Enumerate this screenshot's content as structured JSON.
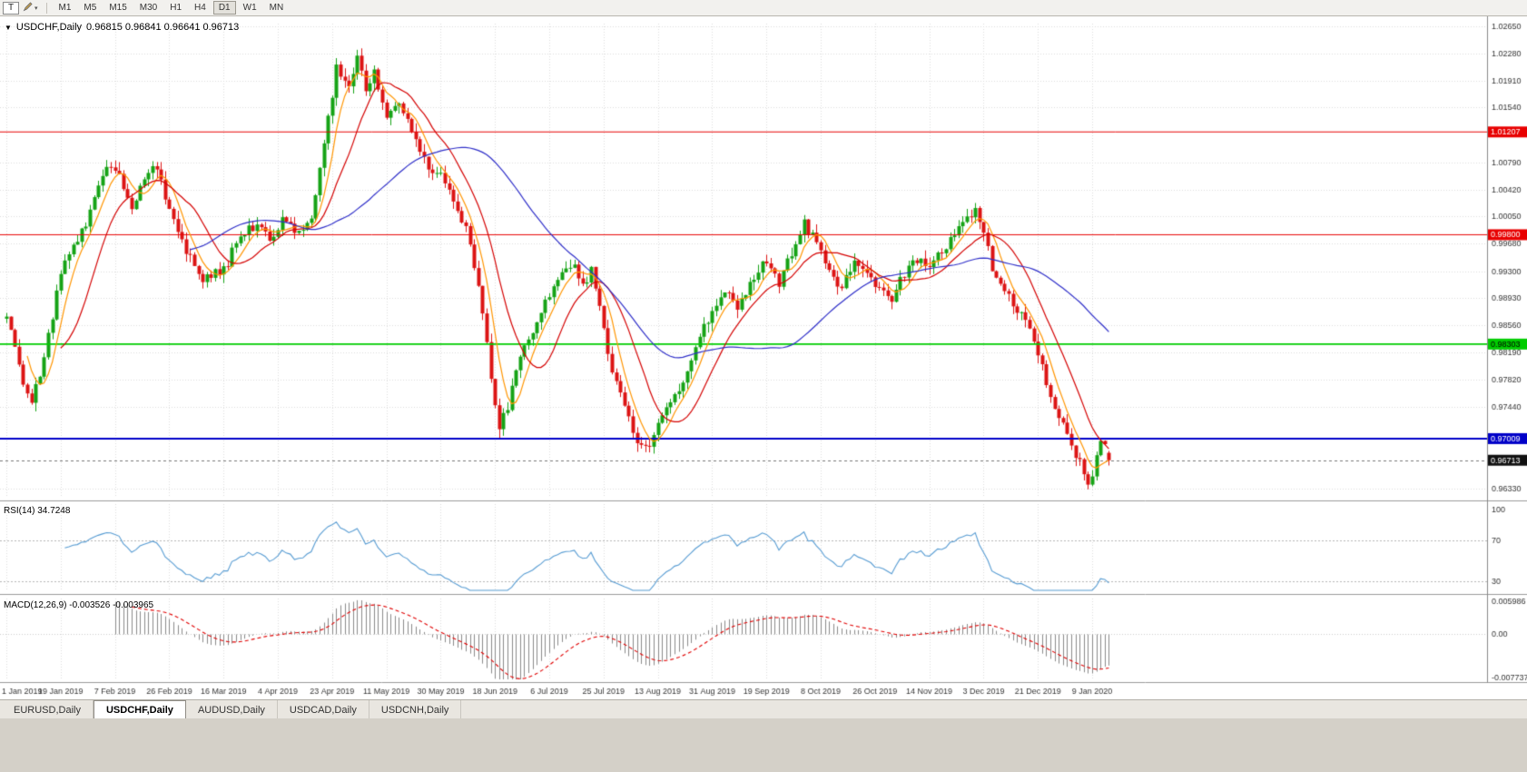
{
  "toolbar": {
    "tool_button": "T",
    "timeframes": [
      "M1",
      "M5",
      "M15",
      "M30",
      "H1",
      "H4",
      "D1",
      "W1",
      "MN"
    ],
    "active_timeframe": "D1"
  },
  "chart_header": {
    "symbol": "USDCHF,Daily",
    "open": "0.96815",
    "high": "0.96841",
    "low": "0.96641",
    "close": "0.96713",
    "ohlc_text": "0.96815 0.96841 0.96641 0.96713"
  },
  "indicator_labels": {
    "rsi": "RSI(14) 34.7248",
    "macd": "MACD(12,26,9) -0.003526 -0.003965"
  },
  "tabs": [
    "EURUSD,Daily",
    "USDCHF,Daily",
    "AUDUSD,Daily",
    "USDCAD,Daily",
    "USDCNH,Daily"
  ],
  "active_tab_index": 1,
  "chart_data": {
    "type": "candlestick",
    "symbol": "USDCHF",
    "timeframe": "Daily",
    "bars_total": 265,
    "bar_tick_interval": 13,
    "date_labels": [
      "1 Jan 2019",
      "19 Jan 2019",
      "7 Feb 2019",
      "26 Feb 2019",
      "16 Mar 2019",
      "4 Apr 2019",
      "23 Apr 2019",
      "11 May 2019",
      "30 May 2019",
      "18 Jun 2019",
      "6 Jul 2019",
      "25 Jul 2019",
      "13 Aug 2019",
      "31 Aug 2019",
      "19 Sep 2019",
      "8 Oct 2019",
      "26 Oct 2019",
      "14 Nov 2019",
      "3 Dec 2019",
      "21 Dec 2019",
      "9 Jan 2020"
    ],
    "price_ticks": [
      "1.02650",
      "1.02280",
      "1.01910",
      "1.01540",
      "1.00790",
      "1.00420",
      "1.00050",
      "0.99680",
      "0.99300",
      "0.98930",
      "0.98560",
      "0.98190",
      "0.97820",
      "0.97440",
      "0.96330"
    ],
    "price_range": {
      "min": 0.962,
      "max": 1.0269
    },
    "hlines": [
      {
        "price": 1.01207,
        "label": "1.01207",
        "color": "#e80000",
        "text_color": "#ffffff",
        "width": 1
      },
      {
        "price": 0.998,
        "label": "0.99800",
        "color": "#e80000",
        "text_color": "#ffffff",
        "width": 1
      },
      {
        "price": 0.98303,
        "label": "0.98303",
        "color": "#00cc00",
        "text_color": "#000000",
        "width": 1.6
      },
      {
        "price": 0.97009,
        "label": "0.97009",
        "color": "#0000c8",
        "text_color": "#ffffff",
        "width": 2
      }
    ],
    "current_bar": {
      "open": 0.96815,
      "high": 0.96841,
      "low": 0.96641,
      "close": 0.96713,
      "label": "0.96713"
    },
    "candle_up_color": "#15a315",
    "candle_down_color": "#dc1414",
    "moving_averages": [
      {
        "period": 6,
        "color": "#ff9500"
      },
      {
        "period": 14,
        "color": "#d40000"
      },
      {
        "period": 45,
        "color": "#2e2ec8"
      }
    ],
    "close_path_anchors": [
      [
        0,
        0.9865
      ],
      [
        2,
        0.9832
      ],
      [
        4,
        0.9768
      ],
      [
        6,
        0.9752
      ],
      [
        9,
        0.9812
      ],
      [
        13,
        0.9928
      ],
      [
        16,
        0.996
      ],
      [
        20,
        1.0008
      ],
      [
        24,
        1.0078
      ],
      [
        27,
        1.0058
      ],
      [
        30,
        1.0016
      ],
      [
        33,
        1.0056
      ],
      [
        36,
        1.0076
      ],
      [
        39,
        1.0012
      ],
      [
        43,
        0.9958
      ],
      [
        47,
        0.9922
      ],
      [
        52,
        0.993
      ],
      [
        56,
        0.9982
      ],
      [
        60,
        0.9994
      ],
      [
        63,
        0.9974
      ],
      [
        66,
        0.9998
      ],
      [
        70,
        0.998
      ],
      [
        73,
        1.0002
      ],
      [
        76,
        1.0105
      ],
      [
        79,
        1.0208
      ],
      [
        82,
        1.019
      ],
      [
        84,
        1.0224
      ],
      [
        86,
        1.0178
      ],
      [
        88,
        1.0206
      ],
      [
        91,
        1.0142
      ],
      [
        94,
        1.0164
      ],
      [
        97,
        1.0118
      ],
      [
        100,
        1.0082
      ],
      [
        104,
        1.0058
      ],
      [
        107,
        1.0032
      ],
      [
        110,
        0.9988
      ],
      [
        113,
        0.9905
      ],
      [
        116,
        0.9788
      ],
      [
        118,
        0.9716
      ],
      [
        120,
        0.9742
      ],
      [
        123,
        0.9818
      ],
      [
        126,
        0.9852
      ],
      [
        129,
        0.9888
      ],
      [
        132,
        0.9914
      ],
      [
        136,
        0.9946
      ],
      [
        138,
        0.9908
      ],
      [
        140,
        0.9932
      ],
      [
        143,
        0.9852
      ],
      [
        145,
        0.9792
      ],
      [
        148,
        0.9744
      ],
      [
        151,
        0.97
      ],
      [
        154,
        0.9692
      ],
      [
        157,
        0.9728
      ],
      [
        160,
        0.9756
      ],
      [
        163,
        0.9788
      ],
      [
        166,
        0.9842
      ],
      [
        169,
        0.9878
      ],
      [
        172,
        0.9902
      ],
      [
        175,
        0.9876
      ],
      [
        178,
        0.9918
      ],
      [
        182,
        0.9944
      ],
      [
        185,
        0.9912
      ],
      [
        188,
        0.9956
      ],
      [
        191,
        0.9994
      ],
      [
        194,
        0.9968
      ],
      [
        197,
        0.9934
      ],
      [
        200,
        0.9906
      ],
      [
        203,
        0.9948
      ],
      [
        206,
        0.9928
      ],
      [
        209,
        0.9904
      ],
      [
        212,
        0.9892
      ],
      [
        215,
        0.9928
      ],
      [
        218,
        0.9946
      ],
      [
        221,
        0.9934
      ],
      [
        224,
        0.9958
      ],
      [
        227,
        0.9984
      ],
      [
        230,
        1.0004
      ],
      [
        232,
        1.0016
      ],
      [
        234,
        0.9988
      ],
      [
        236,
        0.9934
      ],
      [
        239,
        0.9904
      ],
      [
        242,
        0.9878
      ],
      [
        245,
        0.9854
      ],
      [
        247,
        0.9816
      ],
      [
        249,
        0.9778
      ],
      [
        251,
        0.9746
      ],
      [
        253,
        0.9716
      ],
      [
        255,
        0.969
      ],
      [
        257,
        0.9666
      ],
      [
        259,
        0.9638
      ],
      [
        260,
        0.9652
      ],
      [
        261,
        0.9684
      ],
      [
        262,
        0.9702
      ],
      [
        263,
        0.969
      ],
      [
        264,
        0.96713
      ]
    ],
    "rsi": {
      "period": 14,
      "current": 34.7248,
      "color": "#569bd2",
      "axis_labels": [
        "100",
        "70",
        "30"
      ],
      "levels": [
        70,
        30
      ]
    },
    "macd": {
      "fast": 12,
      "slow": 26,
      "signal_period": 9,
      "macd_current": -0.003526,
      "signal_current": -0.003965,
      "axis_labels": [
        "0.005986",
        "0.00",
        "-0.007737"
      ],
      "hist_color": "#8a8a8a",
      "signal_color": "#e00000"
    }
  }
}
